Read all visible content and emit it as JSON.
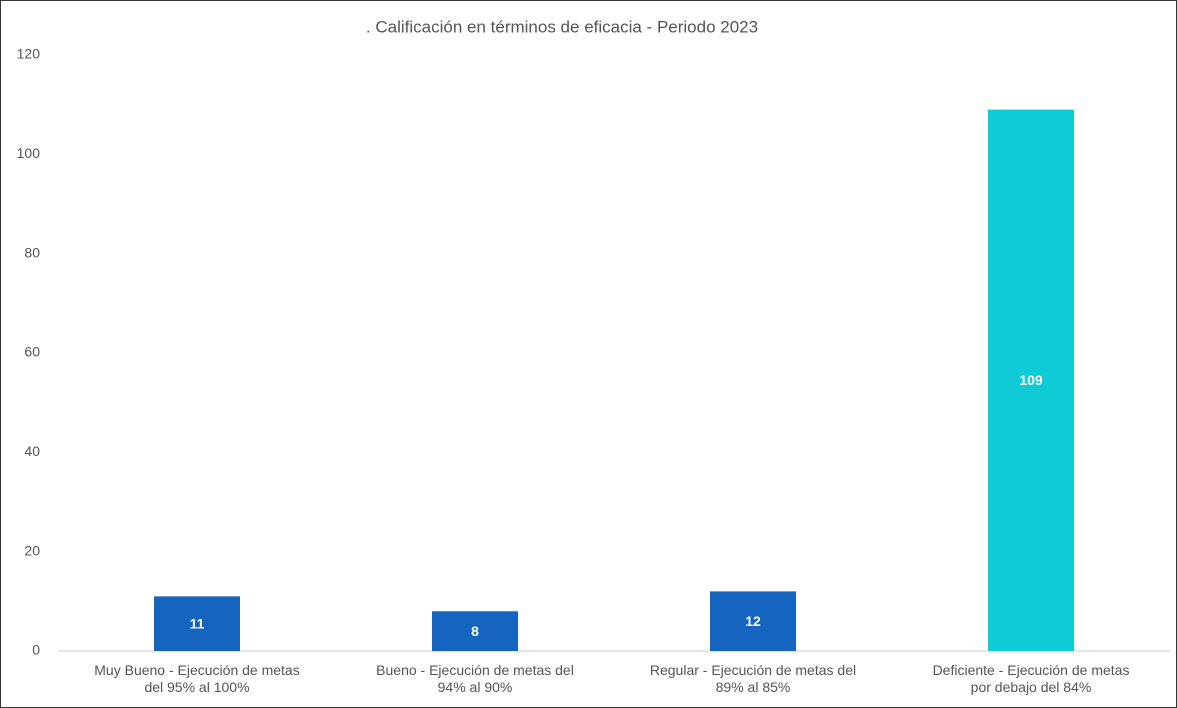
{
  "chart_data": {
    "type": "bar",
    "title": ". Calificación en términos de eficacia - Periodo 2023",
    "categories": [
      "Muy Bueno - Ejecución de metas\ndel 95% al 100%",
      "Bueno - Ejecución de metas del\n94% al 90%",
      "Regular - Ejecución de metas del\n89% al 85%",
      "Deficiente - Ejecución de metas\npor debajo del 84%"
    ],
    "values": [
      11,
      8,
      12,
      109
    ],
    "colors": [
      "#1565c0",
      "#1565c0",
      "#1565c0",
      "#0fcbd6"
    ],
    "ylim": [
      0,
      120
    ],
    "yticks": [
      0,
      20,
      40,
      60,
      80,
      100,
      120
    ],
    "grid": false,
    "data_labels": true
  }
}
